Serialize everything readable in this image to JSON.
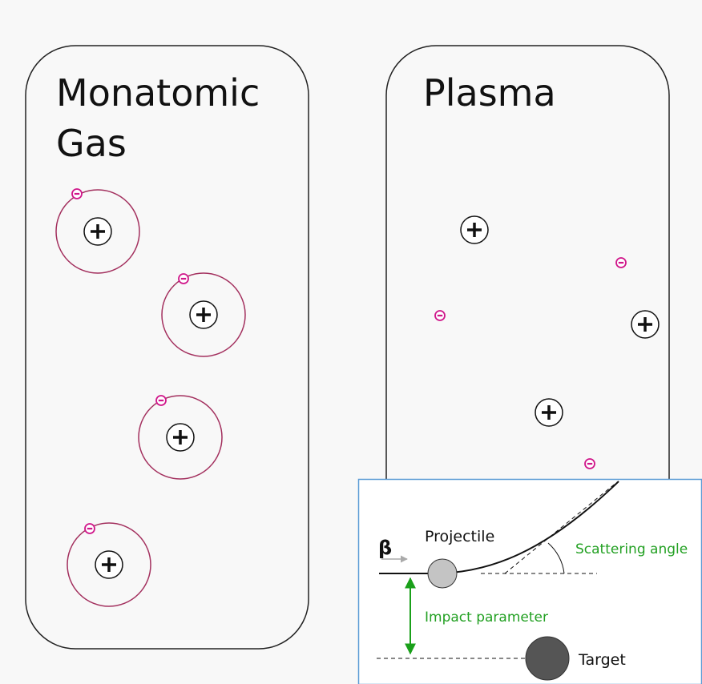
{
  "panels": [
    {
      "title_lines": [
        "Monatomic",
        "Gas"
      ]
    },
    {
      "title_lines": [
        "Plasma"
      ]
    }
  ],
  "inset": {
    "beta": "β",
    "projectile": "Projectile",
    "scattering_angle": "Scattering angle",
    "impact_parameter": "Impact parameter",
    "target": "Target"
  }
}
